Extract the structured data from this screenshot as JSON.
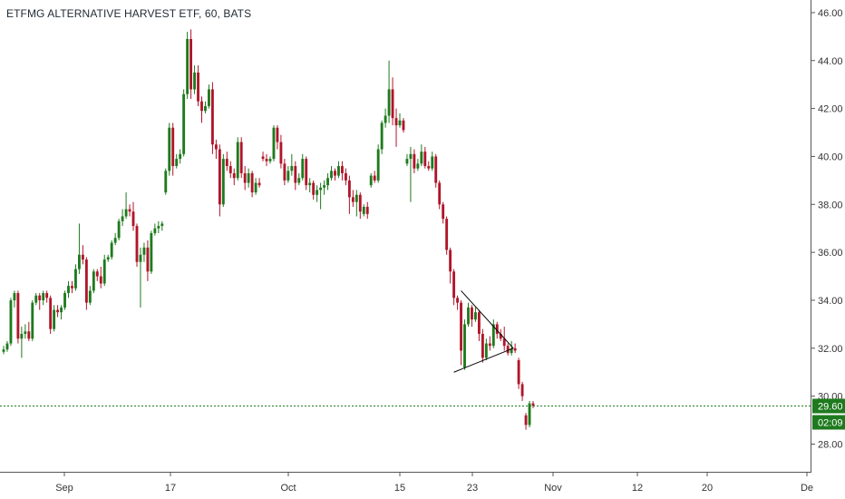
{
  "chart_data": {
    "type": "candlestick",
    "title": "ETFMG ALTERNATIVE HARVEST ETF, 60, BATS",
    "interval": "60",
    "exchange": "BATS",
    "ylim": [
      27.3,
      46.3
    ],
    "y_ticks": [
      "46.00",
      "44.00",
      "42.00",
      "40.00",
      "38.00",
      "36.00",
      "34.00",
      "32.00",
      "30.00",
      "28.00"
    ],
    "x_ticks": [
      "Sep",
      "17",
      "Oct",
      "15",
      "23",
      "Nov",
      "12",
      "20",
      "De"
    ],
    "last_price": "29.60",
    "countdown": "02:09",
    "colors": {
      "up": "#1e7a1e",
      "down": "#b0152a",
      "last_price": "#1e7a1e",
      "triangle": "#000000"
    },
    "grid": false,
    "ohlc_rows": [
      [
        31.85,
        32.1,
        31.75,
        31.95
      ],
      [
        31.95,
        32.3,
        31.85,
        32.2
      ],
      [
        32.2,
        34.1,
        32.1,
        34.0
      ],
      [
        34.0,
        34.4,
        33.7,
        34.3
      ],
      [
        34.3,
        34.4,
        32.2,
        32.4
      ],
      [
        32.4,
        32.9,
        31.6,
        32.6
      ],
      [
        32.6,
        33.0,
        32.4,
        32.7
      ],
      [
        32.7,
        33.1,
        32.3,
        32.4
      ],
      [
        32.4,
        34.0,
        32.3,
        33.9
      ],
      [
        33.9,
        34.3,
        33.8,
        34.2
      ],
      [
        34.2,
        34.3,
        33.6,
        34.0
      ],
      [
        34.0,
        34.4,
        33.8,
        34.3
      ],
      [
        34.3,
        34.4,
        33.9,
        34.1
      ],
      [
        34.1,
        34.2,
        32.6,
        32.8
      ],
      [
        32.8,
        33.8,
        32.7,
        33.6
      ],
      [
        33.6,
        33.8,
        33.3,
        33.5
      ],
      [
        33.5,
        33.8,
        33.2,
        33.7
      ],
      [
        33.7,
        34.4,
        33.6,
        34.3
      ],
      [
        34.3,
        34.8,
        34.1,
        34.6
      ],
      [
        34.6,
        34.8,
        34.3,
        34.5
      ],
      [
        34.5,
        35.5,
        34.4,
        35.3
      ],
      [
        35.3,
        37.2,
        35.1,
        35.9
      ],
      [
        35.9,
        36.3,
        35.5,
        35.7
      ],
      [
        35.7,
        35.8,
        33.6,
        33.9
      ],
      [
        33.9,
        34.6,
        33.8,
        34.4
      ],
      [
        34.4,
        35.3,
        34.3,
        35.2
      ],
      [
        35.2,
        35.3,
        34.8,
        35.0
      ],
      [
        35.0,
        35.4,
        34.5,
        34.7
      ],
      [
        34.7,
        35.9,
        34.6,
        35.7
      ],
      [
        35.7,
        35.9,
        35.6,
        35.8
      ],
      [
        35.8,
        36.5,
        35.7,
        36.4
      ],
      [
        36.4,
        36.8,
        36.3,
        36.6
      ],
      [
        36.6,
        37.4,
        36.5,
        37.3
      ],
      [
        37.3,
        37.8,
        37.1,
        37.5
      ],
      [
        37.5,
        38.5,
        37.4,
        37.8
      ],
      [
        37.8,
        38.0,
        37.5,
        37.7
      ],
      [
        37.7,
        38.1,
        36.9,
        37.1
      ],
      [
        37.1,
        37.2,
        35.4,
        35.6
      ],
      [
        35.6,
        36.2,
        33.7,
        35.9
      ],
      [
        35.9,
        36.4,
        35.6,
        36.2
      ],
      [
        36.2,
        36.5,
        34.8,
        35.2
      ],
      [
        35.2,
        36.9,
        35.1,
        36.8
      ],
      [
        36.8,
        37.2,
        36.7,
        37.0
      ],
      [
        37.0,
        37.3,
        36.8,
        37.1
      ],
      [
        37.1,
        37.3,
        36.9,
        37.2
      ],
      [
        38.5,
        39.5,
        38.4,
        39.4
      ],
      [
        39.4,
        41.4,
        39.2,
        41.2
      ],
      [
        41.2,
        41.4,
        39.2,
        39.6
      ],
      [
        39.6,
        40.1,
        39.5,
        39.9
      ],
      [
        39.9,
        40.3,
        39.7,
        40.1
      ],
      [
        40.1,
        42.8,
        40.0,
        42.6
      ],
      [
        42.6,
        45.2,
        42.4,
        44.9
      ],
      [
        44.9,
        45.3,
        42.4,
        42.8
      ],
      [
        42.8,
        43.8,
        42.6,
        43.5
      ],
      [
        43.5,
        43.8,
        42.1,
        42.3
      ],
      [
        42.3,
        42.5,
        41.4,
        41.9
      ],
      [
        41.9,
        42.3,
        41.8,
        42.1
      ],
      [
        42.1,
        43.0,
        42.0,
        42.8
      ],
      [
        42.8,
        43.1,
        40.1,
        40.5
      ],
      [
        40.5,
        40.7,
        39.9,
        40.3
      ],
      [
        40.3,
        40.5,
        37.5,
        38.0
      ],
      [
        38.0,
        40.1,
        37.9,
        39.9
      ],
      [
        39.9,
        40.2,
        39.4,
        39.6
      ],
      [
        39.6,
        39.8,
        39.1,
        39.3
      ],
      [
        39.3,
        39.5,
        38.8,
        39.1
      ],
      [
        39.1,
        40.8,
        39.0,
        40.6
      ],
      [
        40.6,
        40.8,
        39.1,
        39.3
      ],
      [
        39.3,
        39.6,
        38.6,
        38.9
      ],
      [
        38.9,
        39.5,
        38.7,
        39.3
      ],
      [
        39.3,
        39.4,
        38.3,
        38.5
      ],
      [
        38.5,
        39.1,
        38.4,
        38.9
      ],
      [
        38.9,
        39.1,
        38.7,
        38.8
      ],
      [
        40.0,
        40.2,
        39.8,
        39.9
      ],
      [
        39.9,
        40.1,
        39.6,
        39.8
      ],
      [
        39.8,
        40.0,
        39.7,
        39.9
      ],
      [
        39.9,
        41.3,
        39.8,
        41.2
      ],
      [
        41.2,
        41.3,
        40.3,
        40.6
      ],
      [
        40.6,
        40.9,
        39.5,
        39.7
      ],
      [
        39.7,
        39.9,
        38.8,
        39.0
      ],
      [
        39.0,
        39.6,
        38.9,
        39.4
      ],
      [
        39.4,
        40.1,
        39.2,
        39.6
      ],
      [
        39.6,
        39.8,
        38.6,
        38.9
      ],
      [
        38.9,
        39.3,
        38.8,
        39.1
      ],
      [
        39.1,
        40.1,
        39.0,
        39.9
      ],
      [
        39.9,
        40.0,
        38.6,
        38.8
      ],
      [
        38.8,
        39.1,
        38.5,
        38.9
      ],
      [
        38.9,
        39.0,
        38.2,
        38.4
      ],
      [
        38.4,
        38.8,
        38.1,
        38.6
      ],
      [
        38.6,
        38.9,
        37.8,
        38.7
      ],
      [
        38.7,
        39.0,
        38.4,
        38.8
      ],
      [
        38.8,
        39.3,
        38.6,
        39.1
      ],
      [
        39.1,
        39.6,
        39.0,
        39.4
      ],
      [
        39.4,
        39.5,
        39.0,
        39.2
      ],
      [
        39.2,
        39.8,
        39.1,
        39.6
      ],
      [
        39.6,
        39.8,
        39.0,
        39.3
      ],
      [
        39.3,
        39.5,
        38.8,
        39.0
      ],
      [
        39.0,
        39.2,
        37.6,
        38.3
      ],
      [
        38.3,
        38.6,
        37.9,
        38.1
      ],
      [
        38.1,
        38.6,
        37.5,
        38.4
      ],
      [
        38.4,
        38.5,
        37.4,
        37.7
      ],
      [
        37.6,
        38.0,
        37.5,
        37.9
      ],
      [
        37.9,
        38.1,
        37.4,
        37.6
      ],
      [
        38.8,
        39.3,
        38.7,
        39.2
      ],
      [
        39.2,
        39.4,
        38.9,
        39.0
      ],
      [
        39.0,
        40.5,
        38.9,
        40.3
      ],
      [
        40.3,
        41.5,
        40.1,
        41.4
      ],
      [
        41.4,
        42.0,
        41.2,
        41.7
      ],
      [
        41.7,
        44.0,
        41.4,
        42.8
      ],
      [
        42.8,
        43.3,
        41.3,
        41.6
      ],
      [
        41.6,
        42.0,
        40.4,
        41.3
      ],
      [
        41.3,
        41.8,
        41.2,
        41.5
      ],
      [
        41.5,
        41.6,
        41.0,
        41.1
      ],
      [
        39.7,
        40.1,
        39.6,
        39.9
      ],
      [
        39.9,
        40.4,
        38.1,
        40.1
      ],
      [
        40.1,
        40.3,
        39.3,
        39.5
      ],
      [
        39.5,
        39.9,
        39.4,
        39.7
      ],
      [
        39.7,
        40.5,
        39.6,
        40.2
      ],
      [
        40.2,
        40.4,
        39.5,
        39.6
      ],
      [
        39.6,
        39.8,
        39.4,
        39.5
      ],
      [
        39.5,
        40.2,
        39.4,
        40.0
      ],
      [
        40.0,
        40.1,
        38.7,
        38.9
      ],
      [
        38.9,
        39.0,
        37.8,
        38.0
      ],
      [
        38.0,
        38.1,
        37.2,
        37.4
      ],
      [
        37.4,
        37.5,
        35.9,
        36.1
      ],
      [
        36.1,
        36.2,
        34.7,
        35.2
      ],
      [
        35.2,
        35.3,
        33.8,
        34.1
      ],
      [
        34.1,
        34.2,
        33.6,
        33.9
      ],
      [
        33.9,
        34.0,
        31.3,
        31.9
      ],
      [
        31.2,
        33.2,
        31.1,
        33.0
      ],
      [
        33.0,
        33.9,
        32.9,
        33.7
      ],
      [
        33.7,
        33.8,
        32.9,
        33.2
      ],
      [
        33.2,
        33.7,
        33.1,
        33.5
      ],
      [
        33.5,
        33.6,
        32.3,
        32.6
      ],
      [
        32.6,
        32.8,
        31.4,
        31.6
      ],
      [
        31.6,
        32.4,
        31.5,
        32.2
      ],
      [
        32.2,
        32.5,
        31.9,
        32.1
      ],
      [
        32.1,
        33.2,
        32.0,
        33.0
      ],
      [
        33.0,
        33.1,
        32.4,
        32.6
      ],
      [
        32.6,
        32.8,
        32.3,
        32.4
      ],
      [
        32.4,
        32.9,
        31.9,
        32.1
      ],
      [
        32.1,
        32.2,
        31.7,
        31.8
      ],
      [
        31.8,
        32.3,
        31.7,
        32.0
      ],
      [
        32.0,
        32.2,
        31.8,
        31.9
      ],
      [
        31.5,
        31.6,
        30.3,
        30.5
      ],
      [
        30.5,
        30.6,
        29.8,
        30.0
      ],
      [
        29.2,
        29.3,
        28.6,
        28.8
      ],
      [
        28.8,
        29.8,
        28.7,
        29.7
      ],
      [
        29.7,
        29.8,
        29.5,
        29.6
      ]
    ]
  }
}
